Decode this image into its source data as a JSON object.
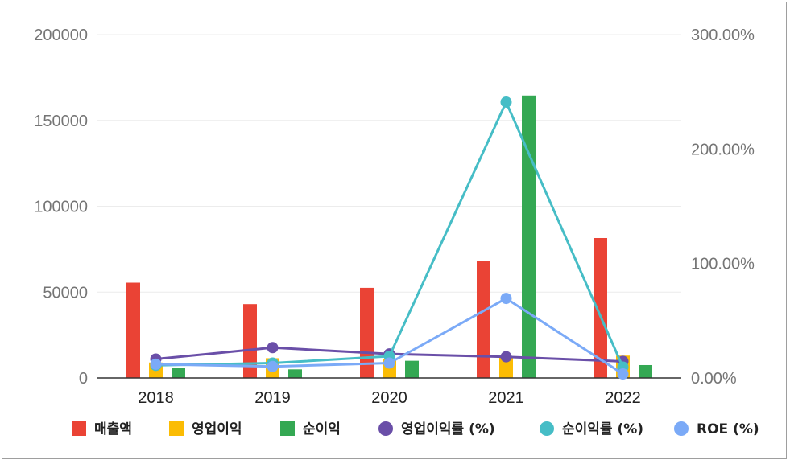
{
  "chart_data": {
    "type": "bar",
    "categories": [
      "2018",
      "2019",
      "2020",
      "2021",
      "2022"
    ],
    "y_left": {
      "min": 0,
      "max": 200000,
      "ticks": [
        "0",
        "50000",
        "100000",
        "150000",
        "200000"
      ]
    },
    "y_right": {
      "min": 0,
      "max": 300,
      "ticks": [
        "0.00%",
        "100.00%",
        "200.00%",
        "300.00%"
      ]
    },
    "grid": true,
    "legend_position": "bottom",
    "series": [
      {
        "name": "매출액",
        "kind": "bar",
        "axis": "left",
        "color": "#ea4335",
        "values": [
          55500,
          43000,
          52500,
          68000,
          81500
        ]
      },
      {
        "name": "영업이익",
        "kind": "bar",
        "axis": "left",
        "color": "#fbbc04",
        "values": [
          9000,
          11500,
          11000,
          12000,
          13000
        ]
      },
      {
        "name": "순이익",
        "kind": "bar",
        "axis": "left",
        "color": "#34a853",
        "values": [
          6000,
          5000,
          10000,
          164500,
          7500
        ]
      },
      {
        "name": "영업이익률 (%)",
        "kind": "line",
        "axis": "right",
        "color": "#6a4fa8",
        "values": [
          16.5,
          26.5,
          21,
          18.5,
          14.5
        ]
      },
      {
        "name": "순이익률 (%)",
        "kind": "line",
        "axis": "right",
        "color": "#46bdc6",
        "values": [
          11,
          13,
          19,
          241,
          9.5
        ]
      },
      {
        "name": "ROE (%)",
        "kind": "line",
        "axis": "right",
        "color": "#7baaf7",
        "values": [
          12,
          10,
          13,
          69.5,
          3.5
        ]
      }
    ]
  }
}
